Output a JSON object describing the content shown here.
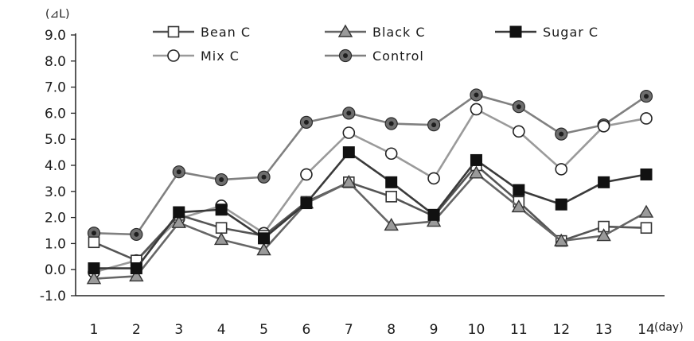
{
  "chart_data": {
    "type": "line",
    "title": "",
    "xlabel": "",
    "ylabel": "",
    "x_unit": "(day)",
    "y_unit": "(⊿L)",
    "categories": [
      "1",
      "2",
      "3",
      "4",
      "5",
      "6",
      "7",
      "8",
      "9",
      "10",
      "11",
      "12",
      "13",
      "14"
    ],
    "ylim": [
      -1.0,
      9.0
    ],
    "yticks": [
      "-1.0",
      "0.0",
      "1.0",
      "2.0",
      "3.0",
      "4.0",
      "5.0",
      "6.0",
      "7.0",
      "8.0",
      "9.0"
    ],
    "grid": false,
    "legend_position": "top",
    "series": [
      {
        "name": "Bean C",
        "marker": "square-open",
        "color": "#555555",
        "values": [
          1.05,
          0.35,
          2.1,
          1.6,
          1.3,
          2.6,
          3.35,
          2.8,
          2.05,
          4.0,
          2.6,
          1.1,
          1.65,
          1.6
        ]
      },
      {
        "name": "Black C",
        "marker": "triangle-gray",
        "color": "#666666",
        "values": [
          -0.35,
          -0.25,
          1.8,
          1.15,
          0.75,
          2.55,
          3.35,
          1.7,
          1.85,
          3.7,
          2.4,
          1.1,
          1.3,
          2.2
        ]
      },
      {
        "name": "Sugar C",
        "marker": "square-filled",
        "color": "#3a3a3a",
        "values": [
          0.05,
          0.05,
          2.2,
          2.3,
          1.2,
          2.55,
          4.5,
          3.35,
          2.1,
          4.2,
          3.05,
          2.5,
          3.35,
          3.65
        ]
      },
      {
        "name": "Mix C",
        "marker": "circle-open",
        "color": "#9a9a9a",
        "values": [
          -0.1,
          0.35,
          1.95,
          2.45,
          1.4,
          3.65,
          5.25,
          4.45,
          3.5,
          6.15,
          5.3,
          3.85,
          5.5,
          5.8
        ]
      },
      {
        "name": "Control",
        "marker": "circle-dark",
        "color": "#808080",
        "values": [
          1.4,
          1.35,
          3.75,
          3.45,
          3.55,
          5.65,
          6.0,
          5.6,
          5.55,
          6.7,
          6.25,
          5.2,
          5.55,
          6.65
        ]
      }
    ]
  }
}
